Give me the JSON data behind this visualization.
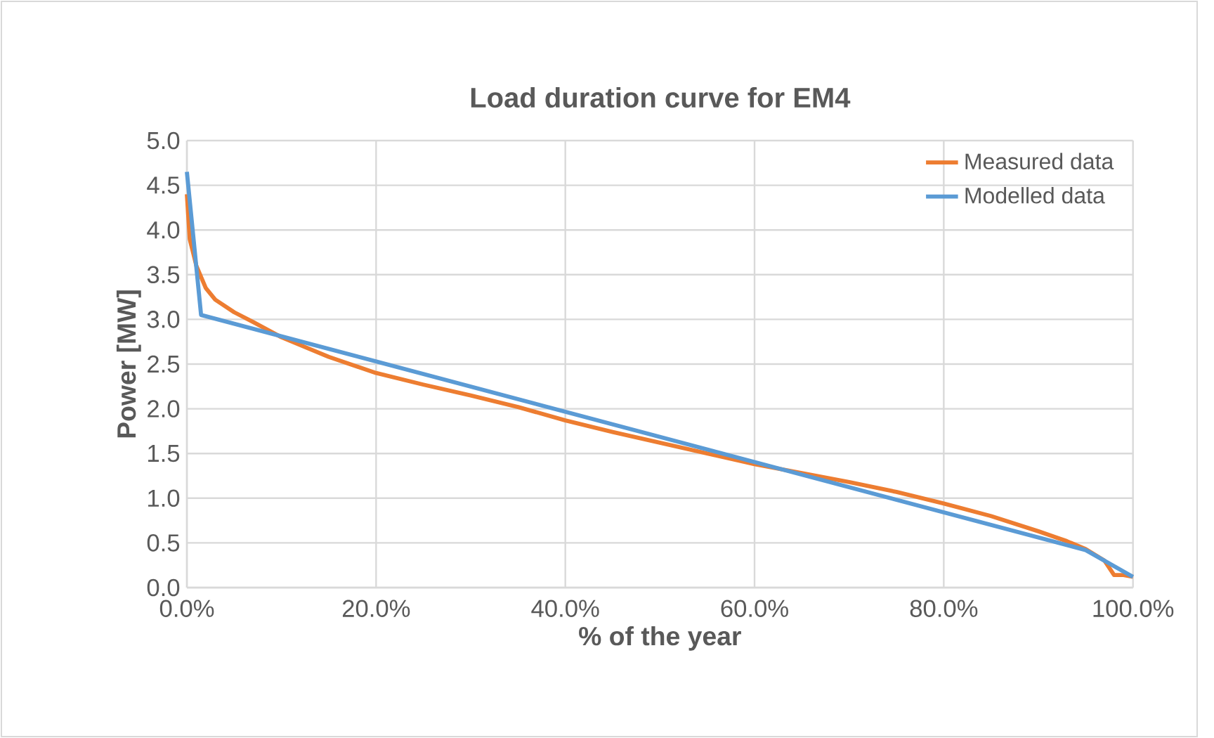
{
  "chart_data": {
    "type": "line",
    "title": "Load duration  curve for EM4",
    "xlabel": "% of the year",
    "ylabel": "Power [MW]",
    "xlim": [
      0,
      100
    ],
    "ylim": [
      0,
      5
    ],
    "xticks": [
      {
        "value": 0,
        "label": "0.0%"
      },
      {
        "value": 20,
        "label": "20.0%"
      },
      {
        "value": 40,
        "label": "40.0%"
      },
      {
        "value": 60,
        "label": "60.0%"
      },
      {
        "value": 80,
        "label": "80.0%"
      },
      {
        "value": 100,
        "label": "100.0%"
      }
    ],
    "yticks": [
      {
        "value": 0,
        "label": "0.0"
      },
      {
        "value": 0.5,
        "label": "0.5"
      },
      {
        "value": 1,
        "label": "1.0"
      },
      {
        "value": 1.5,
        "label": "1.5"
      },
      {
        "value": 2,
        "label": "2.0"
      },
      {
        "value": 2.5,
        "label": "2.5"
      },
      {
        "value": 3,
        "label": "3.0"
      },
      {
        "value": 3.5,
        "label": "3.5"
      },
      {
        "value": 4,
        "label": "4.0"
      },
      {
        "value": 4.5,
        "label": "4.5"
      },
      {
        "value": 5,
        "label": "5.0"
      }
    ],
    "grid": true,
    "legend": "top right",
    "marker": "none",
    "line_style": "solid",
    "series": [
      {
        "name": "Measured data",
        "color": "#ed7d31",
        "x": [
          0,
          0.3,
          1,
          2,
          3,
          5,
          7,
          10,
          15,
          20,
          25,
          30,
          35,
          40,
          45,
          50,
          55,
          60,
          65,
          70,
          75,
          80,
          85,
          90,
          93,
          95,
          97,
          98,
          99,
          100
        ],
        "values": [
          4.4,
          3.9,
          3.6,
          3.35,
          3.22,
          3.08,
          2.97,
          2.8,
          2.58,
          2.4,
          2.27,
          2.15,
          2.02,
          1.87,
          1.74,
          1.62,
          1.5,
          1.38,
          1.28,
          1.18,
          1.07,
          0.94,
          0.8,
          0.63,
          0.52,
          0.43,
          0.3,
          0.14,
          0.14,
          0.12
        ]
      },
      {
        "name": "Modelled data",
        "color": "#5b9bd5",
        "x": [
          0,
          1.5,
          95,
          100
        ],
        "values": [
          4.65,
          3.05,
          0.42,
          0.12
        ]
      }
    ]
  }
}
